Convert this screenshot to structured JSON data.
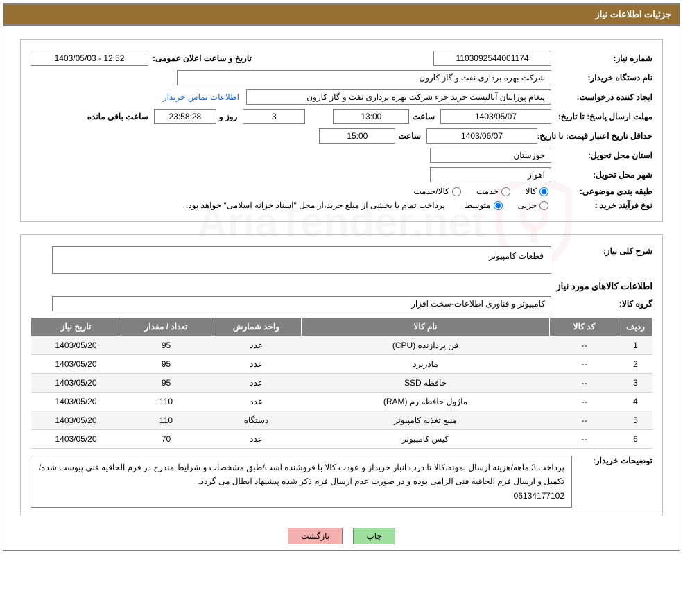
{
  "title": "جزئیات اطلاعات نیاز",
  "labels": {
    "need_no": "شماره نیاز:",
    "announce_dt": "تاریخ و ساعت اعلان عمومی:",
    "buyer_org": "نام دستگاه خریدار:",
    "requester": "ایجاد کننده درخواست:",
    "contact_link": "اطلاعات تماس خریدار",
    "reply_deadline": "مهلت ارسال پاسخ: تا تاریخ:",
    "hour": "ساعت",
    "days_and": "روز و",
    "time_left": "ساعت باقی مانده",
    "price_validity": "حداقل تاریخ اعتبار قیمت: تا تاریخ:",
    "province": "استان محل تحویل:",
    "city": "شهر محل تحویل:",
    "category": "طبقه بندی موضوعی:",
    "cat_goods": "کالا",
    "cat_service": "خدمت",
    "cat_goods_service": "کالا/خدمت",
    "purchase_type": "نوع فرآیند خرید :",
    "pt_partial": "جزیی",
    "pt_medium": "متوسط",
    "payment_note": "پرداخت تمام یا بخشی از مبلغ خرید،از محل \"اسناد خزانه اسلامی\" خواهد بود.",
    "general_desc": "شرح کلی نیاز:",
    "items_info": "اطلاعات کالاهای مورد نیاز",
    "goods_group": "گروه کالا:",
    "buyer_notes": "توضیحات خریدار:",
    "btn_print": "چاپ",
    "btn_back": "بازگشت"
  },
  "fields": {
    "need_no": "1103092544001174",
    "announce_dt": "1403/05/03 - 12:52",
    "buyer_org": "شرکت بهره برداری نفت و گاز کارون",
    "requester": "پیغام پورانیان آنالیست خرید جزء شرکت بهره برداری نفت و گاز کارون",
    "reply_date": "1403/05/07",
    "reply_time": "13:00",
    "days_left": "3",
    "timer": "23:58:28",
    "price_date": "1403/06/07",
    "price_time": "15:00",
    "province": "خوزستان",
    "city": "اهواز",
    "general_desc": "قطعات کامپیوتر",
    "goods_group": "کامپیوتر و فناوری اطلاعات-سخت افزار",
    "buyer_notes": "پرداخت 3 ماهه/هزینه ارسال نمونه،کالا تا درب انبار خریدار و عودت کالا با فروشنده است/طبق مشخصات و شرایط مندرج در فرم الحاقیه فنی پیوست شده/تکمیل و ارسال فرم الحاقیه فنی الزامی بوده و در صورت عدم ارسال فرم ذکر شده پیشنهاد ابطال می گردد.",
    "buyer_phone": "06134177102"
  },
  "table": {
    "headers": {
      "row": "ردیف",
      "code": "کد کالا",
      "name": "نام کالا",
      "unit": "واحد شمارش",
      "qty": "تعداد / مقدار",
      "date": "تاریخ نیاز"
    },
    "rows": [
      {
        "n": "1",
        "code": "--",
        "name": "فن پردازنده (CPU)",
        "unit": "عدد",
        "qty": "95",
        "date": "1403/05/20"
      },
      {
        "n": "2",
        "code": "--",
        "name": "مادربرد",
        "unit": "عدد",
        "qty": "95",
        "date": "1403/05/20"
      },
      {
        "n": "3",
        "code": "--",
        "name": "حافظه SSD",
        "unit": "عدد",
        "qty": "95",
        "date": "1403/05/20"
      },
      {
        "n": "4",
        "code": "--",
        "name": "ماژول حافظه رم (RAM)",
        "unit": "عدد",
        "qty": "110",
        "date": "1403/05/20"
      },
      {
        "n": "5",
        "code": "--",
        "name": "منبع تغذیه کامپیوتر",
        "unit": "دستگاه",
        "qty": "110",
        "date": "1403/05/20"
      },
      {
        "n": "6",
        "code": "--",
        "name": "کیس کامپیوتر",
        "unit": "عدد",
        "qty": "70",
        "date": "1403/05/20"
      }
    ]
  },
  "colors": {
    "header_bg": "#966f33",
    "header_fg": "#ffffff",
    "border": "#808080",
    "th_bg": "#808080",
    "link": "#1e63d0",
    "btn_print": "#9fe09f",
    "btn_back": "#f5b0b0"
  },
  "watermark": "AriaTender.net"
}
